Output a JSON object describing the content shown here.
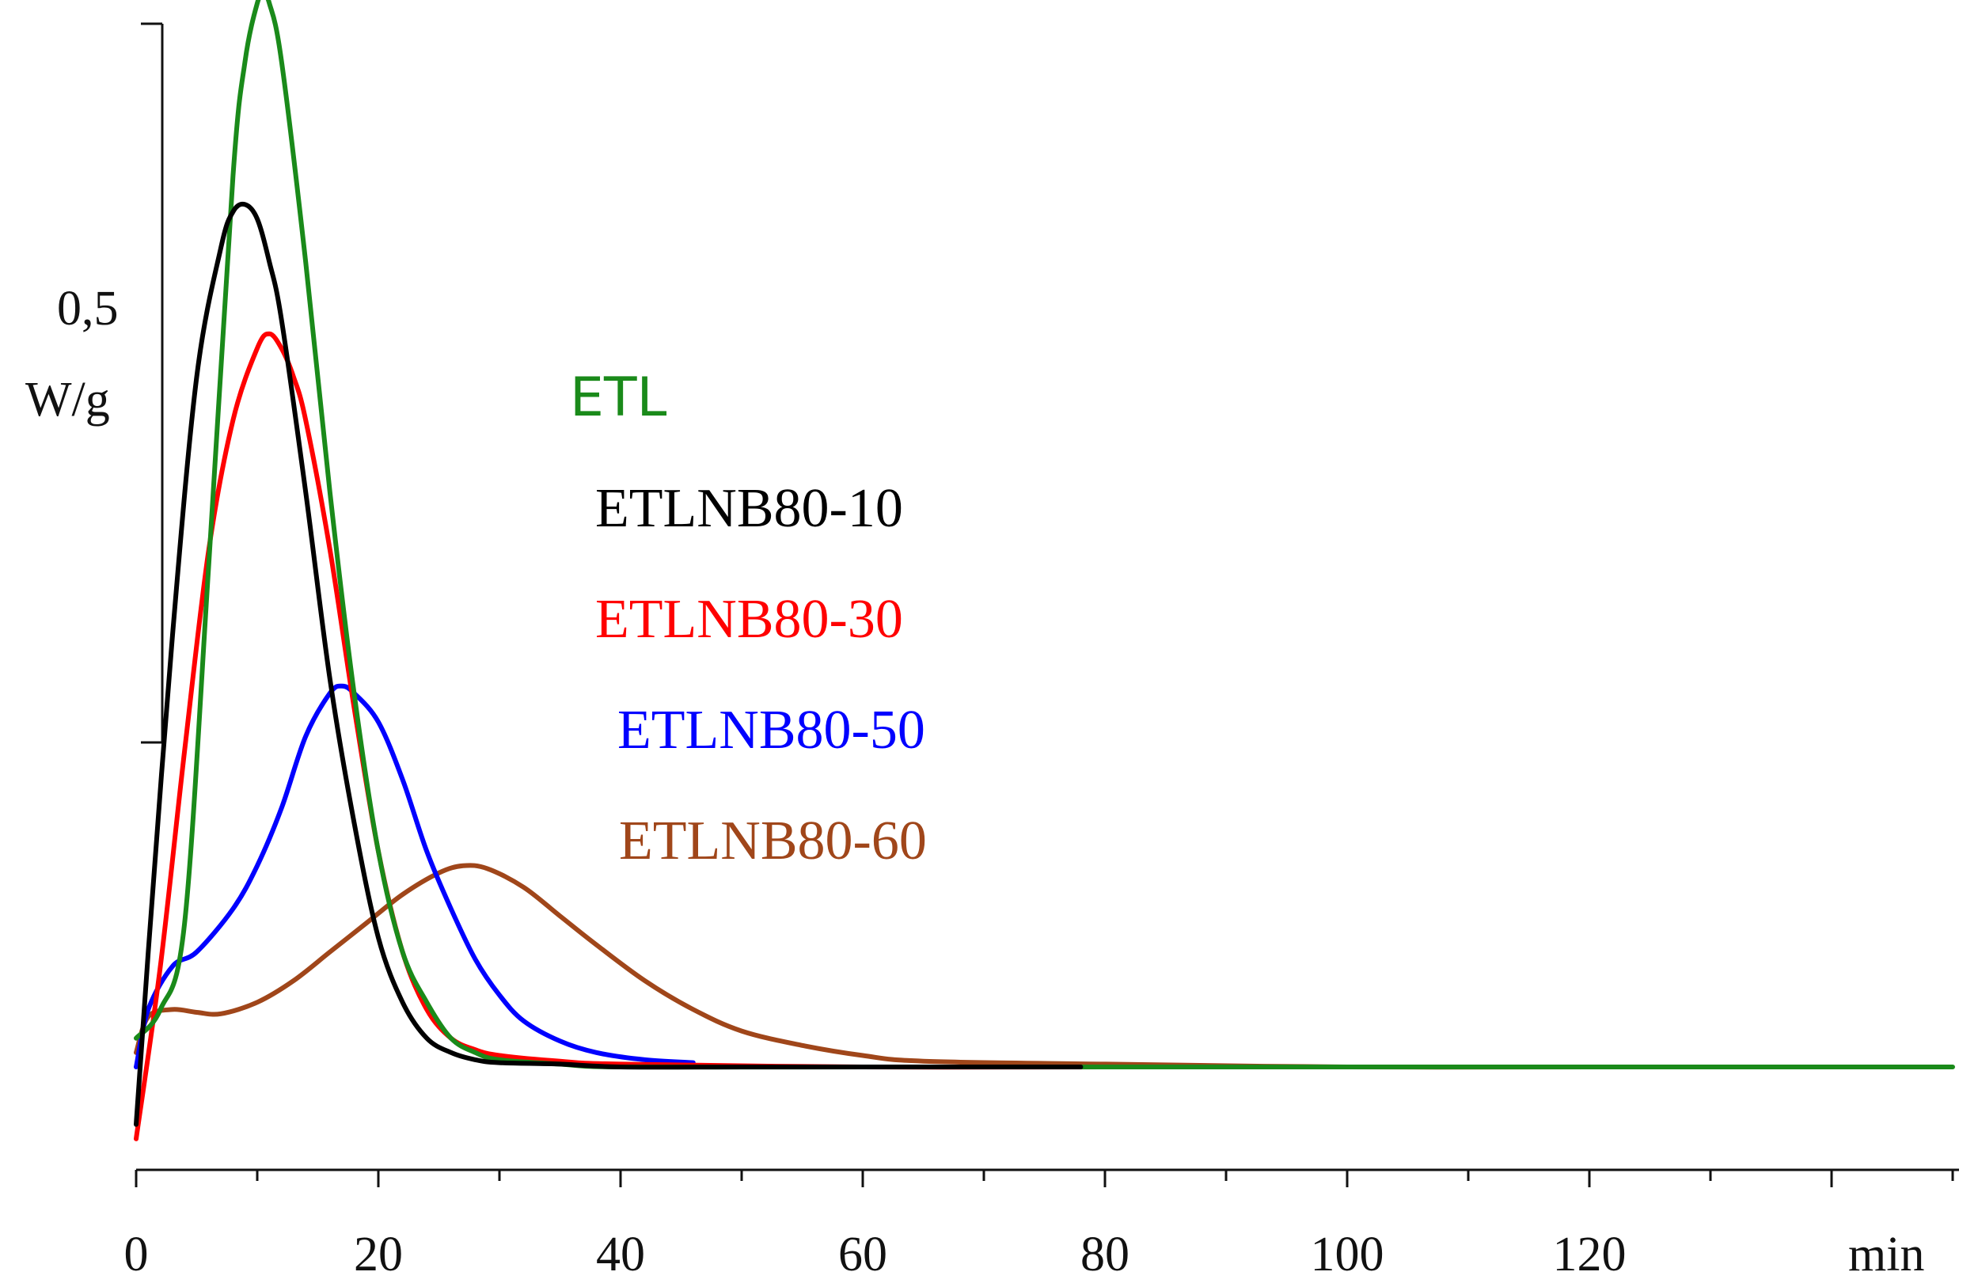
{
  "chart_data": {
    "type": "line",
    "title": "",
    "xlabel": "min",
    "ylabel": "W/g",
    "y_scale_label": "0,5",
    "y_scale_value": 0.5,
    "x_ticks": [
      0,
      20,
      40,
      60,
      80,
      100,
      120
    ],
    "x_tick_labels": [
      "0",
      "20",
      "40",
      "60",
      "80",
      "100",
      "120"
    ],
    "xlim": [
      0,
      150
    ],
    "ylim": [
      -0.05,
      0.75
    ],
    "grid": false,
    "legend_position": "center",
    "series": [
      {
        "name": "ETL",
        "color": "#1a8a1a",
        "x": [
          0,
          2,
          4,
          6,
          8,
          9,
          10,
          10.5,
          11,
          12,
          14,
          16,
          18,
          20,
          22,
          24,
          26,
          28,
          30,
          35,
          40,
          60,
          80,
          100,
          120,
          135,
          150
        ],
        "y": [
          0.02,
          0.04,
          0.1,
          0.35,
          0.62,
          0.7,
          0.74,
          0.745,
          0.74,
          0.7,
          0.56,
          0.4,
          0.26,
          0.15,
          0.08,
          0.045,
          0.02,
          0.01,
          0.005,
          0.002,
          0.0,
          0.0,
          0.0,
          0.0,
          0.0,
          0.0,
          0.0
        ]
      },
      {
        "name": "ETLNB80-10",
        "color": "#000000",
        "x": [
          0,
          1,
          3,
          5,
          7,
          8,
          9,
          10,
          11,
          12,
          14,
          16,
          18,
          20,
          22,
          24,
          26,
          28,
          30,
          35,
          40,
          50,
          60,
          70,
          78
        ],
        "y": [
          -0.04,
          0.08,
          0.3,
          0.48,
          0.57,
          0.595,
          0.6,
          0.59,
          0.56,
          0.52,
          0.4,
          0.27,
          0.17,
          0.09,
          0.045,
          0.02,
          0.01,
          0.005,
          0.003,
          0.002,
          0.0,
          0.0,
          0.0,
          0.0,
          0.0
        ]
      },
      {
        "name": "ETLNB80-30",
        "color": "#ff0000",
        "x": [
          0,
          2,
          4,
          6,
          8,
          10,
          11,
          12,
          13,
          14,
          16,
          18,
          20,
          22,
          24,
          26,
          28,
          30,
          35,
          40,
          60,
          80,
          100,
          120
        ],
        "y": [
          -0.05,
          0.07,
          0.22,
          0.36,
          0.45,
          0.5,
          0.51,
          0.5,
          0.48,
          0.45,
          0.36,
          0.25,
          0.15,
          0.08,
          0.04,
          0.02,
          0.012,
          0.008,
          0.004,
          0.002,
          0.0,
          0.0,
          0.0,
          0.0
        ]
      },
      {
        "name": "ETLNB80-50",
        "color": "#0000ff",
        "x": [
          0,
          1,
          3,
          5,
          8,
          10,
          12,
          14,
          16,
          17,
          18,
          20,
          22,
          24,
          26,
          28,
          30,
          32,
          35,
          38,
          42,
          46
        ],
        "y": [
          0.0,
          0.04,
          0.07,
          0.08,
          0.11,
          0.14,
          0.18,
          0.23,
          0.26,
          0.265,
          0.26,
          0.24,
          0.2,
          0.15,
          0.11,
          0.075,
          0.05,
          0.032,
          0.018,
          0.01,
          0.005,
          0.003
        ]
      },
      {
        "name": "ETLNB80-60",
        "color": "#a0461a",
        "x": [
          0,
          1,
          3,
          5,
          7,
          10,
          13,
          16,
          19,
          22,
          25,
          27,
          29,
          32,
          35,
          38,
          42,
          46,
          50,
          55,
          60,
          65,
          80,
          100,
          120
        ],
        "y": [
          0.01,
          0.035,
          0.04,
          0.038,
          0.037,
          0.045,
          0.06,
          0.08,
          0.1,
          0.12,
          0.135,
          0.14,
          0.138,
          0.125,
          0.105,
          0.085,
          0.06,
          0.04,
          0.025,
          0.015,
          0.008,
          0.004,
          0.002,
          0.0,
          0.0
        ]
      }
    ],
    "legend": [
      {
        "label": "ETL",
        "color": "#1a8a1a"
      },
      {
        "label": "ETLNB80-10",
        "color": "#000000"
      },
      {
        "label": "ETLNB80-30",
        "color": "#ff0000"
      },
      {
        "label": "ETLNB80-50",
        "color": "#0000ff"
      },
      {
        "label": "ETLNB80-60",
        "color": "#a0461a"
      }
    ]
  }
}
